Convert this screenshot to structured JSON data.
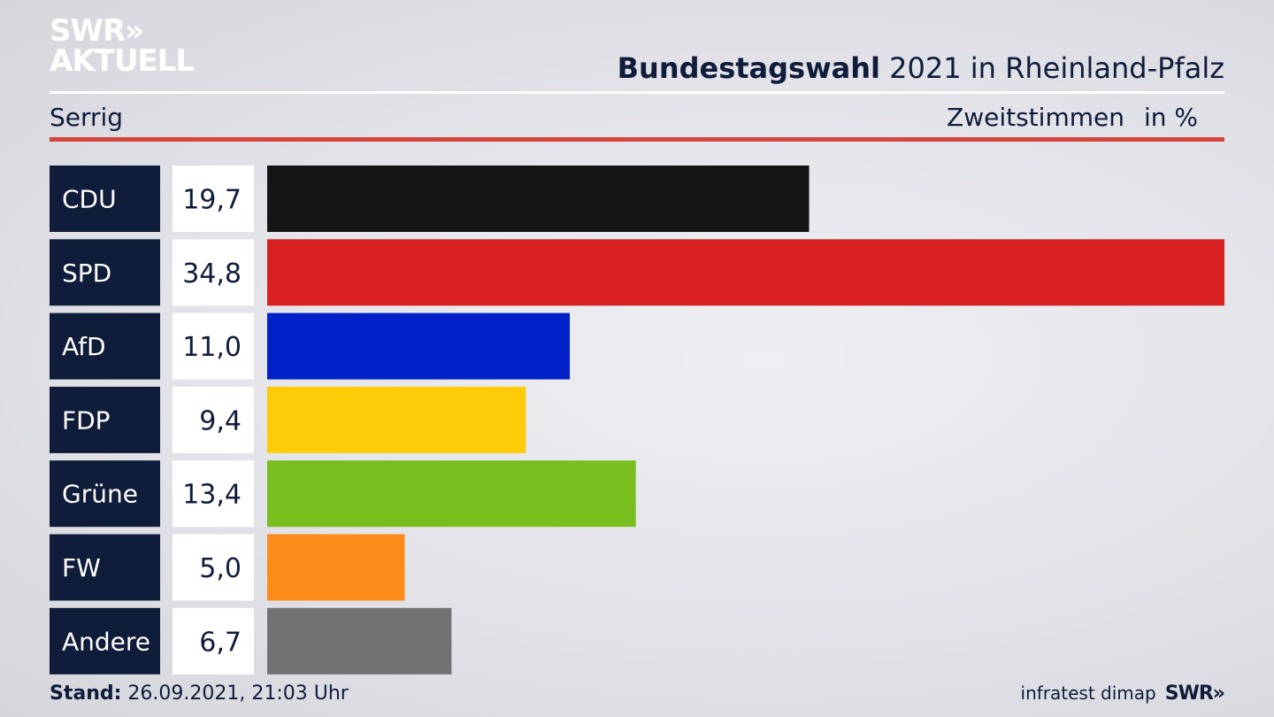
{
  "logo": {
    "line1": "SWR",
    "line1_mark": "»",
    "line2": "AKTUELL"
  },
  "header": {
    "title_bold": "Bundestagswahl",
    "title_rest": "2021 in Rheinland-Pfalz",
    "subtitle": "Serrig",
    "measure": "Zweitstimmen",
    "unit": "in %"
  },
  "chart_data": {
    "type": "bar",
    "orientation": "horizontal",
    "categories": [
      "CDU",
      "SPD",
      "AfD",
      "FDP",
      "Grüne",
      "FW",
      "Andere"
    ],
    "values": [
      19.7,
      34.8,
      11.0,
      9.4,
      13.4,
      5.0,
      6.7
    ],
    "value_labels": [
      "19,7",
      "34,8",
      "11,0",
      "9,4",
      "13,4",
      "5,0",
      "6,7"
    ],
    "colors": [
      "#141414",
      "#d7201f",
      "#0021c8",
      "#fecb08",
      "#78be1e",
      "#fd8b1a",
      "#727274"
    ],
    "xlim": [
      0,
      34.8
    ]
  },
  "footer": {
    "stand_label": "Stand:",
    "stand_value": "26.09.2021, 21:03 Uhr",
    "source": "infratest dimap",
    "brand": "SWR»"
  }
}
